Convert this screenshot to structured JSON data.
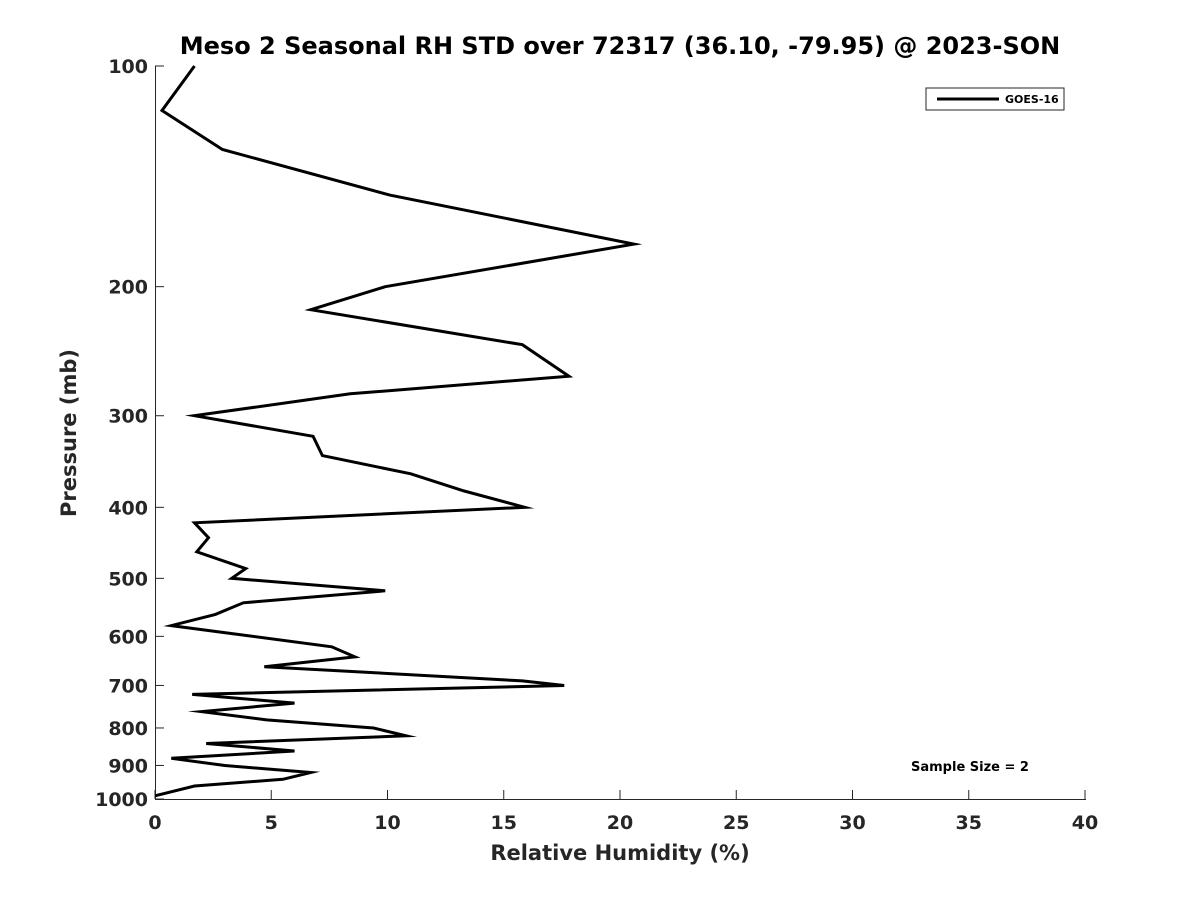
{
  "chart_data": {
    "type": "line",
    "title": "Meso 2 Seasonal RH STD over 72317 (36.10, -79.95) @ 2023-SON",
    "xlabel": "Relative Humidity (%)",
    "ylabel": "Pressure (mb)",
    "xlim": [
      0,
      40
    ],
    "ylim": [
      100,
      1000
    ],
    "y_scale": "log",
    "y_reversed": true,
    "grid": false,
    "legend_position": "top-right",
    "x_ticks": [
      0,
      5,
      10,
      15,
      20,
      25,
      30,
      35,
      40
    ],
    "x_tick_labels": [
      "0",
      "5",
      "10",
      "15",
      "20",
      "25",
      "30",
      "35",
      "40"
    ],
    "y_ticks": [
      100,
      200,
      300,
      400,
      500,
      600,
      700,
      800,
      900,
      1000
    ],
    "y_tick_labels": [
      "100",
      "200",
      "300",
      "400",
      "500",
      "600",
      "700",
      "800",
      "900",
      "1000"
    ],
    "series": [
      {
        "name": "GOES-16",
        "color": "#000000",
        "x": [
          1.7,
          0.3,
          2.9,
          10.1,
          20.6,
          9.9,
          6.7,
          15.8,
          17.8,
          8.4,
          1.7,
          6.8,
          7.2,
          11.0,
          13.3,
          15.9,
          1.7,
          2.3,
          1.8,
          3.9,
          3.3,
          9.9,
          3.8,
          2.6,
          0.7,
          7.6,
          8.6,
          4.7,
          15.8,
          17.6,
          1.6,
          6.0,
          2.0,
          4.8,
          9.4,
          10.8,
          2.2,
          6.0,
          0.7,
          3.0,
          6.7,
          5.5,
          1.7,
          0.0
        ],
        "y": [
          100,
          115,
          130,
          150,
          175,
          200,
          215,
          240,
          265,
          280,
          300,
          320,
          340,
          360,
          380,
          400,
          420,
          440,
          460,
          485,
          500,
          520,
          540,
          560,
          580,
          620,
          640,
          660,
          690,
          700,
          720,
          740,
          760,
          780,
          800,
          820,
          840,
          860,
          880,
          900,
          920,
          940,
          960,
          990
        ]
      }
    ],
    "annotations": [
      "Sample Size = 2"
    ]
  }
}
